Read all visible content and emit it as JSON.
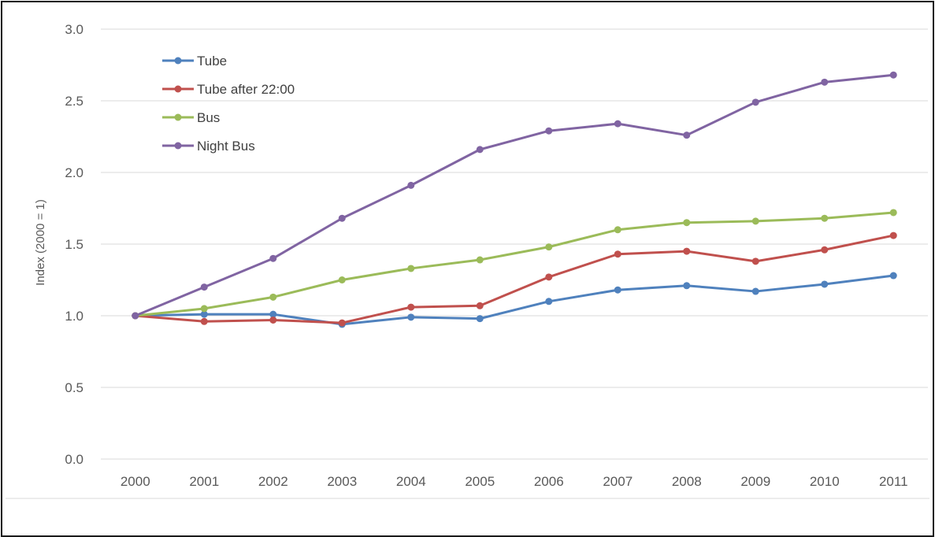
{
  "chart_data": {
    "type": "line",
    "title": "",
    "xlabel": "",
    "ylabel": "Index (2000 = 1)",
    "ylim": [
      0,
      3
    ],
    "yticks": [
      "0.0",
      "0.5",
      "1.0",
      "1.5",
      "2.0",
      "2.5",
      "3.0"
    ],
    "grid": true,
    "legend_position": "top-left",
    "categories": [
      "2000",
      "2001",
      "2002",
      "2003",
      "2004",
      "2005",
      "2006",
      "2007",
      "2008",
      "2009",
      "2010",
      "2011"
    ],
    "series": [
      {
        "name": "Tube",
        "color": "#4f81bd",
        "values": [
          1.0,
          1.01,
          1.01,
          0.94,
          0.99,
          0.98,
          1.1,
          1.18,
          1.21,
          1.17,
          1.22,
          1.28
        ]
      },
      {
        "name": "Tube after 22:00",
        "color": "#c0504d",
        "values": [
          1.0,
          0.96,
          0.97,
          0.95,
          1.06,
          1.07,
          1.27,
          1.43,
          1.45,
          1.38,
          1.46,
          1.56
        ]
      },
      {
        "name": "Bus",
        "color": "#9bbb59",
        "values": [
          1.0,
          1.05,
          1.13,
          1.25,
          1.33,
          1.39,
          1.48,
          1.6,
          1.65,
          1.66,
          1.68,
          1.72
        ]
      },
      {
        "name": "Night Bus",
        "color": "#8064a2",
        "values": [
          1.0,
          1.2,
          1.4,
          1.68,
          1.91,
          2.16,
          2.29,
          2.34,
          2.26,
          2.49,
          2.63,
          2.68
        ]
      }
    ]
  }
}
